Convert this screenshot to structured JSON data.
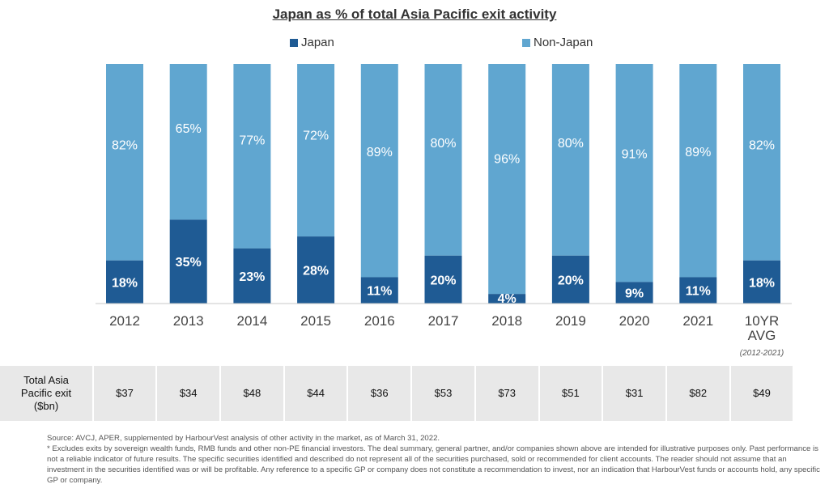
{
  "title": "Japan as % of total Asia Pacific exit activity",
  "legend": [
    {
      "label": "Japan",
      "color": "#1f5b94"
    },
    {
      "label": "Non-Japan",
      "color": "#60a6d0"
    }
  ],
  "chart_data": {
    "type": "bar",
    "stacked": true,
    "title": "Japan as % of total Asia Pacific exit activity",
    "categories": [
      "2012",
      "2013",
      "2014",
      "2015",
      "2016",
      "2017",
      "2018",
      "2019",
      "2020",
      "2021",
      "10YR AVG"
    ],
    "category_note": "(2012-2021)",
    "series": [
      {
        "name": "Japan",
        "color": "#1f5b94",
        "values": [
          18,
          35,
          23,
          28,
          11,
          20,
          4,
          20,
          9,
          11,
          18
        ]
      },
      {
        "name": "Non-Japan",
        "color": "#60a6d0",
        "values": [
          82,
          65,
          77,
          72,
          89,
          80,
          96,
          80,
          91,
          89,
          82
        ]
      }
    ],
    "data_labels": {
      "Japan": [
        "18%",
        "35%",
        "23%",
        "28%",
        "11%",
        "20%",
        "4%",
        "20%",
        "9%",
        "11%",
        "18%"
      ],
      "Non-Japan": [
        "82%",
        "65%",
        "77%",
        "72%",
        "89%",
        "80%",
        "96%",
        "80%",
        "91%",
        "89%",
        "82%"
      ]
    },
    "ylim": [
      0,
      100
    ],
    "legend_position": "top",
    "grid": false
  },
  "table": {
    "header": "Total Asia Pacific exit ($bn)",
    "values": [
      "$37",
      "$34",
      "$48",
      "$44",
      "$36",
      "$53",
      "$73",
      "$51",
      "$31",
      "$82",
      "$49"
    ]
  },
  "footnotes": {
    "source": "Source: AVCJ, APER, supplemented by HarbourVest analysis of other activity in the market, as of March 31, 2022.",
    "disclaimer": "* Excludes exits by sovereign wealth funds, RMB funds and other non-PE financial investors. The deal summary, general partner, and/or companies shown above are intended for illustrative purposes only. Past performance is not a reliable indicator of future results. The specific securities identified and described do not represent all of the securities purchased, sold or recommended for client accounts. The reader should not assume that an investment in the securities identified was or will be profitable. Any reference to a specific GP or company does not constitute a recommendation to invest, nor an indication that HarbourVest funds or accounts hold, any specific GP or company."
  }
}
